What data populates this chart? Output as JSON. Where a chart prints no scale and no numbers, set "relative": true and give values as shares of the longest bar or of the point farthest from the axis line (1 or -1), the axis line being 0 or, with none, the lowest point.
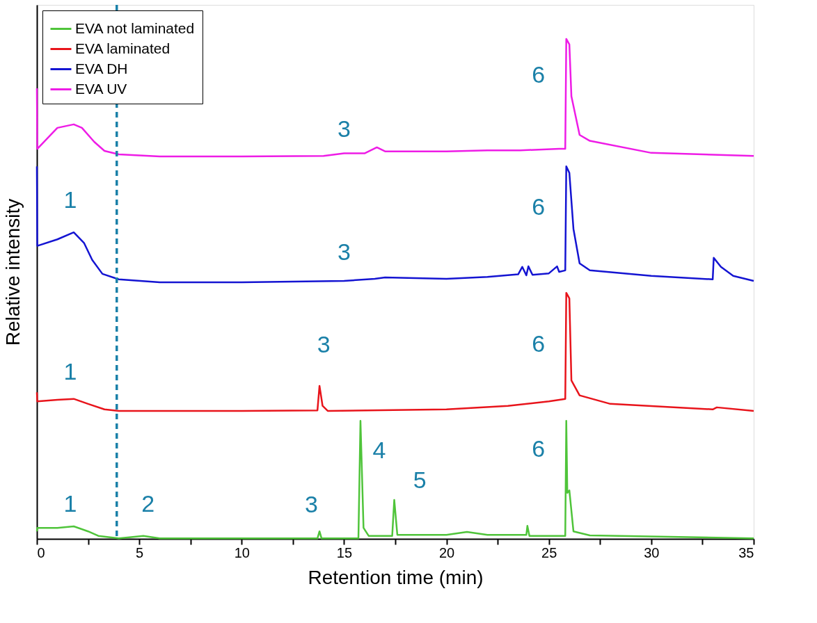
{
  "chart_data": {
    "type": "line",
    "relative": true,
    "xlabel": "Retention time (min)",
    "ylabel": "Relative intensity",
    "xlim": [
      0,
      35
    ],
    "xticks": [
      0,
      {
        "value": 2.5,
        "label": null
      },
      5,
      {
        "value": 7.5,
        "label": null
      },
      10,
      {
        "value": 12.5,
        "label": null
      },
      15,
      {
        "value": 17.5,
        "label": null
      },
      20,
      {
        "value": 22.5,
        "label": null
      },
      25,
      {
        "value": 27.5,
        "label": null
      },
      30,
      {
        "value": 32.5,
        "label": null
      },
      35
    ],
    "grid": false,
    "legend": "top left",
    "line_style": "solid",
    "tick_labels": "x",
    "series": [
      {
        "name": "EVA not laminated",
        "color": "#4fc43a",
        "x": [
          0,
          0.02,
          1,
          1.8,
          2.5,
          3,
          4,
          5.2,
          6,
          13.7,
          13.8,
          13.9,
          15.7,
          15.8,
          15.95,
          16.2,
          17.35,
          17.45,
          17.6,
          20,
          21,
          22,
          23.9,
          23.95,
          24.05,
          25.8,
          25.85,
          25.9,
          26,
          26.2,
          27,
          35
        ],
        "values": [
          0.015,
          0.022,
          0.022,
          0.025,
          0.015,
          0.006,
          0.001,
          0.006,
          0.001,
          0.001,
          0.015,
          0.001,
          0.001,
          0.236,
          0.022,
          0.006,
          0.006,
          0.078,
          0.008,
          0.008,
          0.014,
          0.008,
          0.008,
          0.026,
          0.006,
          0.006,
          0.236,
          0.092,
          0.097,
          0.015,
          0.007,
          0.001
        ]
      },
      {
        "name": "EVA laminated",
        "color": "#e8141b",
        "x": [
          0,
          0.02,
          1,
          1.8,
          2.5,
          3.3,
          4,
          10,
          13.7,
          13.8,
          13.95,
          14.2,
          20,
          23,
          25,
          25.8,
          25.85,
          26,
          26.1,
          26.5,
          28,
          33,
          33.2,
          35
        ],
        "values": [
          0.293,
          0.275,
          0.278,
          0.28,
          0.27,
          0.259,
          0.256,
          0.256,
          0.257,
          0.306,
          0.266,
          0.256,
          0.259,
          0.266,
          0.275,
          0.28,
          0.492,
          0.481,
          0.317,
          0.287,
          0.27,
          0.259,
          0.263,
          0.256
        ]
      },
      {
        "name": "EVA DH",
        "color": "#1414d2",
        "x": [
          0,
          0.02,
          1,
          1.8,
          2.3,
          2.7,
          3.2,
          4,
          6,
          10,
          15,
          16.5,
          17,
          20,
          22,
          23.5,
          23.7,
          23.9,
          24,
          24.2,
          25,
          25.4,
          25.5,
          25.8,
          25.85,
          26,
          26.2,
          26.5,
          27,
          30,
          33,
          33.05,
          33.4,
          34,
          35
        ],
        "values": [
          0.745,
          0.586,
          0.599,
          0.613,
          0.592,
          0.558,
          0.53,
          0.519,
          0.513,
          0.513,
          0.516,
          0.52,
          0.523,
          0.52,
          0.524,
          0.529,
          0.544,
          0.527,
          0.545,
          0.528,
          0.531,
          0.545,
          0.534,
          0.537,
          0.745,
          0.732,
          0.62,
          0.551,
          0.537,
          0.526,
          0.519,
          0.562,
          0.544,
          0.526,
          0.516
        ]
      },
      {
        "name": "EVA UV",
        "color": "#ee1ce6",
        "x": [
          0,
          0.02,
          1,
          1.8,
          2.2,
          2.8,
          3.3,
          4,
          6,
          10,
          14,
          15,
          16,
          16.6,
          17,
          20,
          22,
          23.6,
          25.5,
          25.8,
          25.85,
          26,
          26.1,
          26.5,
          27,
          30,
          35
        ],
        "values": [
          0.901,
          0.78,
          0.822,
          0.829,
          0.822,
          0.794,
          0.776,
          0.769,
          0.765,
          0.765,
          0.766,
          0.771,
          0.771,
          0.783,
          0.775,
          0.775,
          0.777,
          0.777,
          0.78,
          0.78,
          1.0,
          0.989,
          0.885,
          0.808,
          0.796,
          0.772,
          0.766
        ]
      }
    ],
    "ref_lines": [
      {
        "axis": "x",
        "value": 3.9,
        "color": "#1a80a8",
        "line_style": "dashed"
      }
    ],
    "annotations": [
      {
        "text": "3",
        "x": 15.0,
        "y": 0.771
      },
      {
        "text": "6",
        "x": 25.85,
        "y": 1.0
      },
      {
        "text": "1",
        "x": 1.63,
        "y": 0.61
      },
      {
        "text": "3",
        "x": 15.0,
        "y": 0.516
      },
      {
        "text": "6",
        "x": 25.85,
        "y": 0.745
      },
      {
        "text": "1",
        "x": 1.63,
        "y": 0.279
      },
      {
        "text": "3",
        "x": 13.8,
        "y": 0.306
      },
      {
        "text": "6",
        "x": 25.85,
        "y": 0.492
      },
      {
        "text": "1",
        "x": 1.63,
        "y": 0.024
      },
      {
        "text": "2",
        "x": 5.43,
        "y": 0.005
      },
      {
        "text": "3",
        "x": 13.4,
        "y": 0.001
      },
      {
        "text": "4",
        "x": 15.8,
        "y": 0.236
      },
      {
        "text": "5",
        "x": 18.7,
        "y": 0.008
      },
      {
        "text": "6",
        "x": 25.85,
        "y": 0.236
      }
    ]
  }
}
